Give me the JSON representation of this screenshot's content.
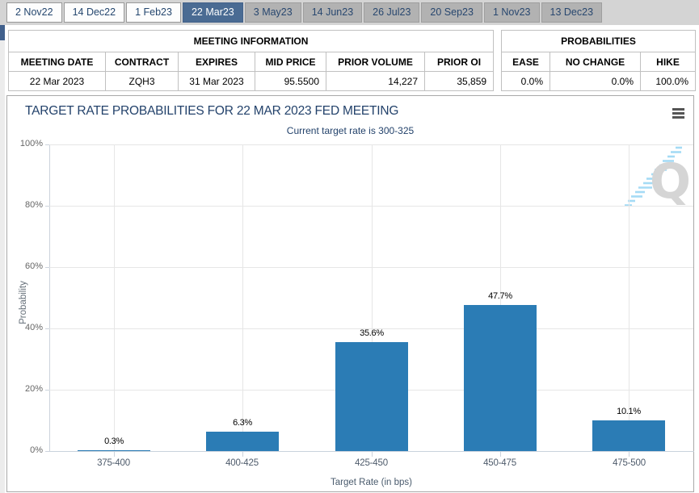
{
  "tab_bar": {
    "items": [
      {
        "label": "2 Nov22",
        "state": "past"
      },
      {
        "label": "14 Dec22",
        "state": "past"
      },
      {
        "label": "1 Feb23",
        "state": "past"
      },
      {
        "label": "22 Mar23",
        "state": "active"
      },
      {
        "label": "3 May23",
        "state": "future"
      },
      {
        "label": "14 Jun23",
        "state": "future"
      },
      {
        "label": "26 Jul23",
        "state": "future"
      },
      {
        "label": "20 Sep23",
        "state": "future"
      },
      {
        "label": "1 Nov23",
        "state": "future"
      },
      {
        "label": "13 Dec23",
        "state": "future"
      }
    ]
  },
  "meeting_info": {
    "title": "MEETING INFORMATION",
    "headers": [
      "MEETING DATE",
      "CONTRACT",
      "EXPIRES",
      "MID PRICE",
      "PRIOR VOLUME",
      "PRIOR OI"
    ],
    "row": {
      "meeting_date": "22 Mar 2023",
      "contract": "ZQH3",
      "expires": "31 Mar 2023",
      "mid_price": "95.5500",
      "prior_volume": "14,227",
      "prior_oi": "35,859"
    }
  },
  "probabilities": {
    "title": "PROBABILITIES",
    "headers": [
      "EASE",
      "NO CHANGE",
      "HIKE"
    ],
    "row": {
      "ease": "0.0%",
      "no_change": "0.0%",
      "hike": "100.0%"
    }
  },
  "chart": {
    "title": "TARGET RATE PROBABILITIES FOR 22 MAR 2023 FED MEETING",
    "subtitle": "Current target rate is 300-325",
    "menu_icon": "hamburger-menu-icon",
    "watermark_letter": "Q"
  },
  "chart_data": {
    "type": "bar",
    "title": "TARGET RATE PROBABILITIES FOR 22 MAR 2023 FED MEETING",
    "subtitle": "Current target rate is 300-325",
    "categories": [
      "375-400",
      "400-425",
      "425-450",
      "450-475",
      "475-500"
    ],
    "values": [
      0.3,
      6.3,
      35.6,
      47.7,
      10.1
    ],
    "data_labels": [
      "0.3%",
      "6.3%",
      "35.6%",
      "47.7%",
      "10.1%"
    ],
    "xlabel": "Target Rate (in bps)",
    "ylabel": "Probability",
    "ylim": [
      0,
      100
    ],
    "ytick_values": [
      0,
      20,
      40,
      60,
      80,
      100
    ],
    "ytick_labels": [
      "0%",
      "20%",
      "40%",
      "60%",
      "80%",
      "100%"
    ],
    "grid": true,
    "legend": "none",
    "bar_color": "#2b7cb5"
  },
  "colors": {
    "active_tab": "#4a6b93",
    "bar": "#2b7cb5",
    "chart_text": "#23426b",
    "watermark_gray": "#d5d5d5",
    "watermark_blue": "#a5dbf5"
  }
}
